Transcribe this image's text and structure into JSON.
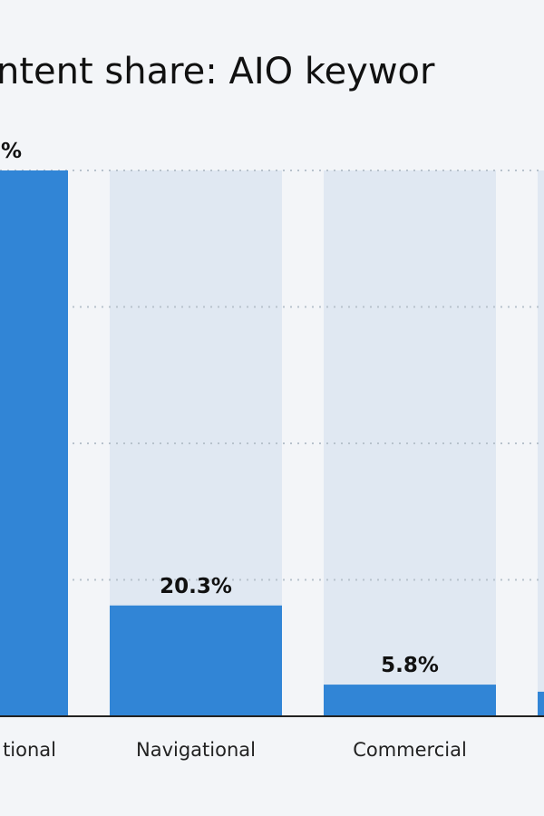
{
  "chart_data": {
    "type": "bar",
    "title": "ntent share: AIO keywor",
    "categories": [
      "tional",
      "Navigational",
      "Commercial",
      null
    ],
    "values": [
      100,
      20.3,
      5.8,
      4.5
    ],
    "value_labels": [
      "%",
      "20.3%",
      "5.8%",
      null
    ],
    "color": "#3185d6",
    "track_color": "#e0e8f2",
    "ylim": [
      0,
      100
    ],
    "yticks": [
      25,
      50,
      75,
      100
    ],
    "grid": true,
    "tick_labels": false
  }
}
